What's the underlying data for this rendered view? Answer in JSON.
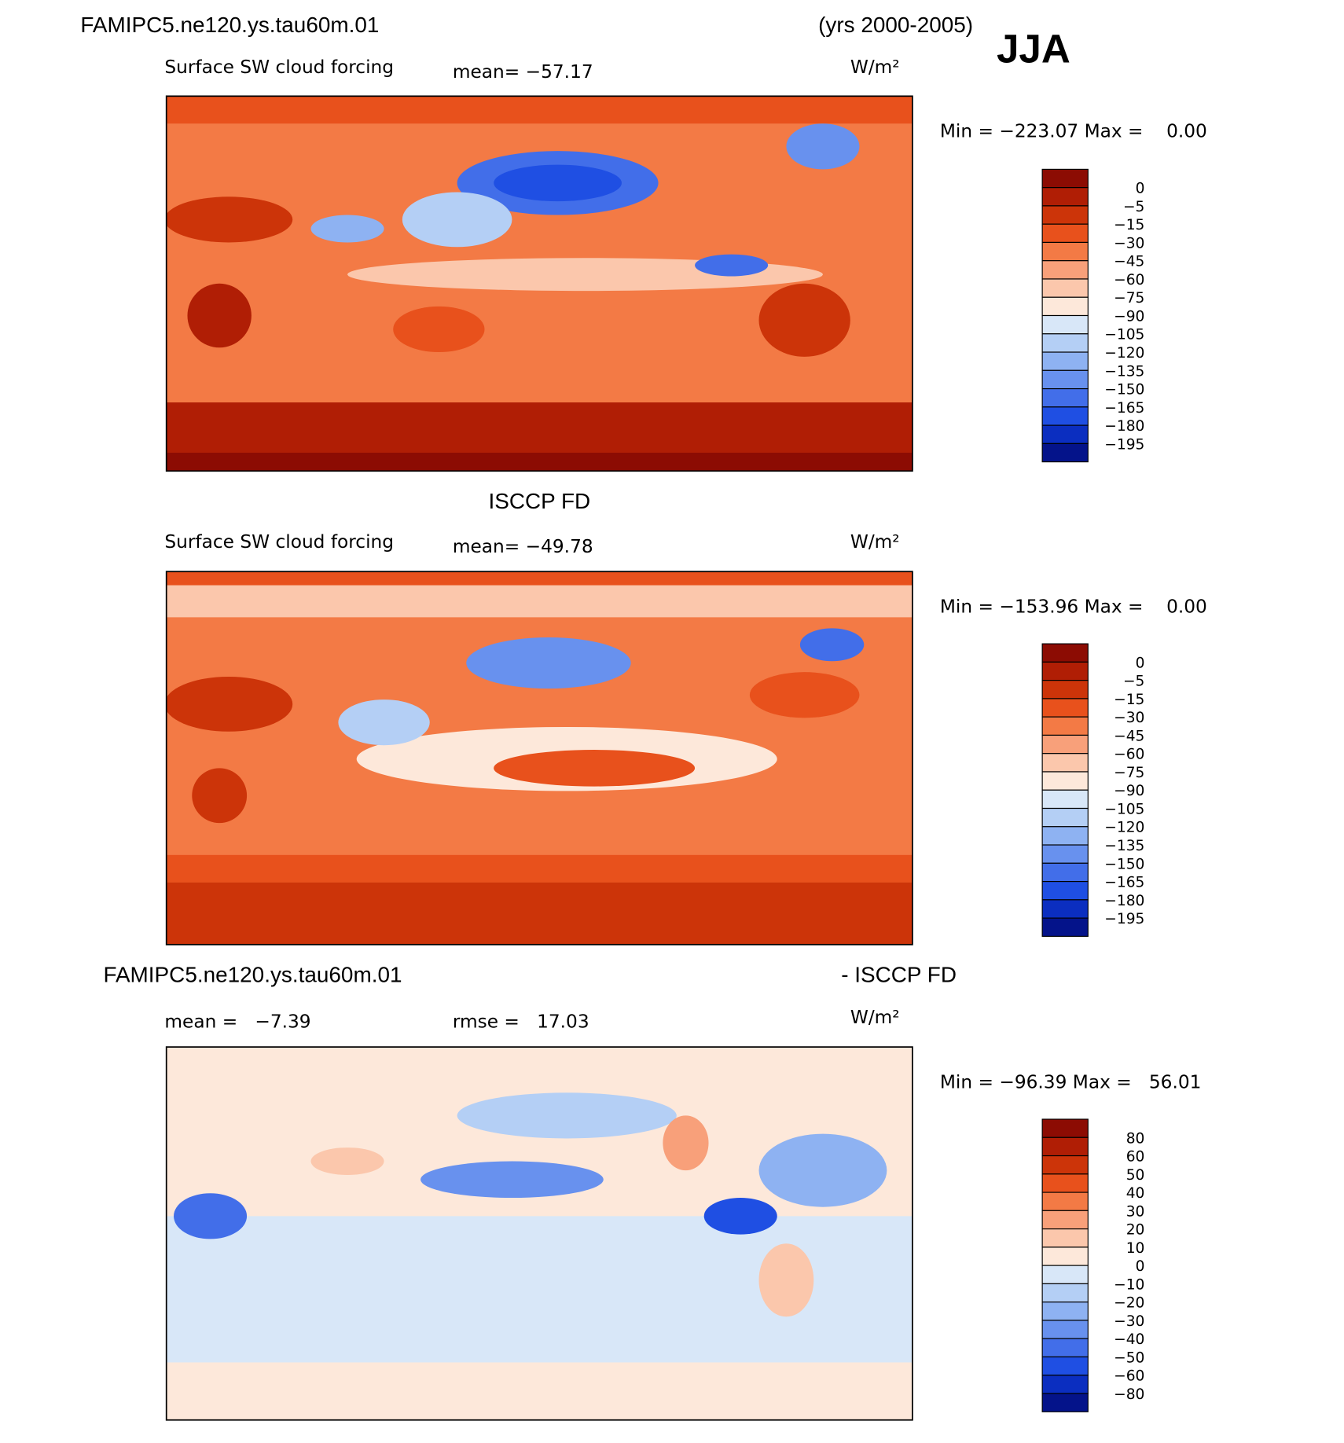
{
  "header": {
    "title": "FAMIPC5.ne120.ys.tau60m.01",
    "years": "(yrs 2000-2005)",
    "season": "JJA"
  },
  "panels": [
    {
      "subtitle": "Surface SW cloud forcing",
      "mean": "mean= −57.17",
      "units": "W/m²",
      "range": "Min = −223.07 Max =    0.00",
      "colorbar": {
        "labels": [
          "0",
          "−5",
          "−15",
          "−30",
          "−45",
          "−60",
          "−75",
          "−90",
          "−105",
          "−120",
          "−135",
          "−150",
          "−165",
          "−180",
          "−195"
        ],
        "colors": [
          "#8c0c03",
          "#b01e05",
          "#cc3409",
          "#e8511c",
          "#f37a45",
          "#f8a07a",
          "#fbc7ac",
          "#fde8da",
          "#d8e7f8",
          "#b4cff5",
          "#8eb2f2",
          "#6891ee",
          "#426ee9",
          "#1f4fe3",
          "#0b2ec0",
          "#04138a"
        ]
      }
    },
    {
      "title": "ISCCP FD",
      "subtitle": "Surface SW cloud forcing",
      "mean": "mean= −49.78",
      "units": "W/m²",
      "range": "Min = −153.96 Max =    0.00",
      "colorbar": {
        "labels": [
          "0",
          "−5",
          "−15",
          "−30",
          "−45",
          "−60",
          "−75",
          "−90",
          "−105",
          "−120",
          "−135",
          "−150",
          "−165",
          "−180",
          "−195"
        ],
        "colors": [
          "#8c0c03",
          "#b01e05",
          "#cc3409",
          "#e8511c",
          "#f37a45",
          "#f8a07a",
          "#fbc7ac",
          "#fde8da",
          "#d8e7f8",
          "#b4cff5",
          "#8eb2f2",
          "#6891ee",
          "#426ee9",
          "#1f4fe3",
          "#0b2ec0",
          "#04138a"
        ]
      }
    },
    {
      "title": "FAMIPC5.ne120.ys.tau60m.01",
      "title_right": "- ISCCP FD",
      "mean": "mean =   −7.39",
      "rmse": "rmse =   17.03",
      "units": "W/m²",
      "range": "Min = −96.39 Max =   56.01",
      "colorbar": {
        "labels": [
          "80",
          "60",
          "50",
          "40",
          "30",
          "20",
          "10",
          "0",
          "−10",
          "−20",
          "−30",
          "−40",
          "−50",
          "−60",
          "−80"
        ],
        "colors": [
          "#8c0c03",
          "#b01e05",
          "#cc3409",
          "#e8511c",
          "#f37a45",
          "#f8a07a",
          "#fbc7ac",
          "#fde8da",
          "#d8e7f8",
          "#b4cff5",
          "#8eb2f2",
          "#6891ee",
          "#426ee9",
          "#1f4fe3",
          "#0b2ec0",
          "#04138a"
        ]
      }
    }
  ]
}
